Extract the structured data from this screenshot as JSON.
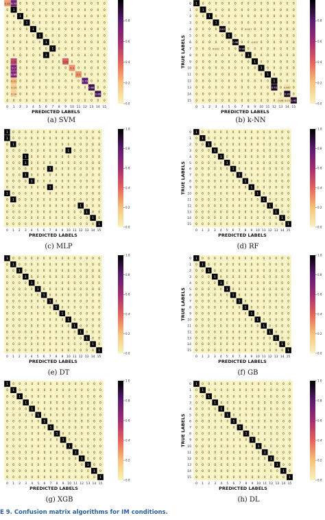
{
  "figure_caption": {
    "label": "E 9.",
    "text": "Confusion matrix algorithms for IM conditions."
  },
  "colors": {
    "zero": "#f9f2bd",
    "low": "#f6c27b",
    "midlow": "#e4625a",
    "mid": "#a02d73",
    "midhigh": "#5a1b70",
    "high": "#000000",
    "grid": "#ffffff",
    "caption_blue": "#2a5f9e"
  },
  "chart_data": [
    {
      "type": "heatmap",
      "subcaption": "(a) SVM",
      "xlabel": "PREDICTED LABELS",
      "ylabel": "",
      "size": 16,
      "tick_labels": [
        "0",
        "1",
        "2",
        "3",
        "4",
        "5",
        "6",
        "7",
        "8",
        "9",
        "10",
        "11",
        "12",
        "13",
        "14",
        "15"
      ],
      "colorbar_ticks": [
        "0.0",
        "0.2",
        "0.4",
        "0.6",
        "0.8"
      ],
      "colorbar_max": 1.0,
      "cells": [
        {
          "r": 0,
          "c": 0,
          "v": 0.28,
          "label": "0.28"
        },
        {
          "r": 0,
          "c": 1,
          "v": 0.72,
          "label": "0.72"
        },
        {
          "r": 1,
          "c": 1,
          "v": 1,
          "label": "1"
        },
        {
          "r": 2,
          "c": 2,
          "v": 1,
          "label": "1"
        },
        {
          "r": 3,
          "c": 3,
          "v": 1,
          "label": "1"
        },
        {
          "r": 4,
          "c": 4,
          "v": 1,
          "label": "1"
        },
        {
          "r": 5,
          "c": 5,
          "v": 1,
          "label": "1"
        },
        {
          "r": 6,
          "c": 6,
          "v": 1,
          "label": "1"
        },
        {
          "r": 7,
          "c": 7,
          "v": 1,
          "label": "1"
        },
        {
          "r": 8,
          "c": 6,
          "v": 1,
          "label": "1"
        },
        {
          "r": 9,
          "c": 1,
          "v": 0.5,
          "label": "0.50"
        },
        {
          "r": 9,
          "c": 9,
          "v": 0.42,
          "label": "0.42"
        },
        {
          "r": 10,
          "c": 1,
          "v": 0.7,
          "label": "0.7"
        },
        {
          "r": 10,
          "c": 10,
          "v": 0.3,
          "label": "0.3"
        },
        {
          "r": 11,
          "c": 1,
          "v": 0.69,
          "label": "0.69"
        },
        {
          "r": 11,
          "c": 11,
          "v": 0.3,
          "label": "0.3"
        },
        {
          "r": 12,
          "c": 1,
          "v": 0.21,
          "label": "0.21"
        },
        {
          "r": 12,
          "c": 12,
          "v": 0.79,
          "label": "0.79"
        },
        {
          "r": 13,
          "c": 1,
          "v": 0.14,
          "label": "0.14"
        },
        {
          "r": 13,
          "c": 13,
          "v": 0.86,
          "label": "0.86"
        },
        {
          "r": 14,
          "c": 1,
          "v": 0.14,
          "label": "0.14"
        },
        {
          "r": 14,
          "c": 14,
          "v": 0.86,
          "label": "0.86"
        }
      ]
    },
    {
      "type": "heatmap",
      "subcaption": "(b) k-NN",
      "xlabel": "PREDICTED LABELS",
      "ylabel": "TRUE LABELS",
      "size": 16,
      "tick_labels": [
        "0",
        "1",
        "2",
        "3",
        "4",
        "5",
        "6",
        "7",
        "8",
        "9",
        "10",
        "11",
        "12",
        "13",
        "14",
        "15"
      ],
      "colorbar_ticks": [
        "0.0",
        "0.2",
        "0.4",
        "0.6",
        "0.8"
      ],
      "colorbar_max": 1.0,
      "cells": [
        {
          "r": 0,
          "c": 0,
          "v": 1,
          "label": "1"
        },
        {
          "r": 1,
          "c": 1,
          "v": 1,
          "label": "1"
        },
        {
          "r": 2,
          "c": 2,
          "v": 1,
          "label": "1"
        },
        {
          "r": 3,
          "c": 3,
          "v": 1,
          "label": "1"
        },
        {
          "r": 4,
          "c": 4,
          "v": 0.97,
          "label": "0.97"
        },
        {
          "r": 4,
          "c": 8,
          "v": 0.017,
          "label": "0.017"
        },
        {
          "r": 5,
          "c": 5,
          "v": 1,
          "label": "1"
        },
        {
          "r": 6,
          "c": 6,
          "v": 0.98,
          "label": "0.98"
        },
        {
          "r": 6,
          "c": 9,
          "v": 0.017,
          "label": "0.017"
        },
        {
          "r": 7,
          "c": 3,
          "v": 0.023,
          "label": "0.023"
        },
        {
          "r": 7,
          "c": 7,
          "v": 0.98,
          "label": "0.98"
        },
        {
          "r": 8,
          "c": 8,
          "v": 1,
          "label": "1"
        },
        {
          "r": 9,
          "c": 9,
          "v": 1,
          "label": "1"
        },
        {
          "r": 10,
          "c": 10,
          "v": 1,
          "label": "1"
        },
        {
          "r": 11,
          "c": 11,
          "v": 1,
          "label": "1"
        },
        {
          "r": 12,
          "c": 12,
          "v": 1,
          "label": "1"
        },
        {
          "r": 13,
          "c": 12,
          "v": 0.93,
          "label": "0.93"
        },
        {
          "r": 13,
          "c": 14,
          "v": 0.063,
          "label": "0.063"
        },
        {
          "r": 14,
          "c": 14,
          "v": 0.95,
          "label": "0.95"
        },
        {
          "r": 15,
          "c": 13,
          "v": 0.06,
          "label": "0.06"
        },
        {
          "r": 15,
          "c": 14,
          "v": 0.03,
          "label": "0.03"
        },
        {
          "r": 15,
          "c": 15,
          "v": 0.92,
          "label": "0.92"
        }
      ]
    },
    {
      "type": "heatmap",
      "subcaption": "(c) MLP",
      "xlabel": "PREDICTED LABELS",
      "ylabel": "",
      "size": 16,
      "tick_labels": [
        "0",
        "1",
        "2",
        "3",
        "4",
        "5",
        "6",
        "7",
        "8",
        "9",
        "10",
        "11",
        "12",
        "13",
        "14",
        "15"
      ],
      "colorbar_ticks": [
        "0.0",
        "0.2",
        "0.4",
        "0.6",
        "0.8",
        "1.0"
      ],
      "colorbar_max": 1.0,
      "cells": [
        {
          "r": 0,
          "c": 0,
          "v": 1,
          "label": "1"
        },
        {
          "r": 1,
          "c": 0,
          "v": 1,
          "label": "1"
        },
        {
          "r": 2,
          "c": 1,
          "v": 1,
          "label": "1"
        },
        {
          "r": 3,
          "c": 10,
          "v": 1,
          "label": "1"
        },
        {
          "r": 4,
          "c": 3,
          "v": 1,
          "label": "1"
        },
        {
          "r": 5,
          "c": 3,
          "v": 1,
          "label": "1"
        },
        {
          "r": 6,
          "c": 7,
          "v": 1,
          "label": "1"
        },
        {
          "r": 7,
          "c": 3,
          "v": 1,
          "label": "1"
        },
        {
          "r": 8,
          "c": 4,
          "v": 1,
          "label": "1"
        },
        {
          "r": 9,
          "c": 7,
          "v": 1,
          "label": "1"
        },
        {
          "r": 10,
          "c": 0,
          "v": 1,
          "label": "1"
        },
        {
          "r": 11,
          "c": 1,
          "v": 1,
          "label": "1"
        },
        {
          "r": 12,
          "c": 12,
          "v": 1,
          "label": "1"
        },
        {
          "r": 13,
          "c": 13,
          "v": 1,
          "label": "1"
        },
        {
          "r": 14,
          "c": 14,
          "v": 1,
          "label": "1"
        },
        {
          "r": 15,
          "c": 15,
          "v": 1,
          "label": "1"
        }
      ]
    },
    {
      "type": "heatmap",
      "subcaption": "(d) RF",
      "xlabel": "PREDICTED LABELS",
      "ylabel": "TRUE LABELS",
      "size": 16,
      "tick_labels": [
        "0",
        "1",
        "2",
        "3",
        "4",
        "5",
        "6",
        "7",
        "8",
        "9",
        "10",
        "11",
        "12",
        "13",
        "14",
        "15"
      ],
      "colorbar_ticks": [
        "0.0",
        "0.2",
        "0.4",
        "0.6",
        "0.8",
        "1.0"
      ],
      "colorbar_max": 1.0,
      "cells": [
        {
          "r": 0,
          "c": 0,
          "v": 1,
          "label": "1"
        },
        {
          "r": 1,
          "c": 1,
          "v": 1,
          "label": "1"
        },
        {
          "r": 2,
          "c": 2,
          "v": 1,
          "label": "1"
        },
        {
          "r": 3,
          "c": 3,
          "v": 1,
          "label": "1"
        },
        {
          "r": 4,
          "c": 4,
          "v": 1,
          "label": "1"
        },
        {
          "r": 5,
          "c": 5,
          "v": 1,
          "label": "1"
        },
        {
          "r": 6,
          "c": 6,
          "v": 1,
          "label": "1"
        },
        {
          "r": 7,
          "c": 7,
          "v": 1,
          "label": "1"
        },
        {
          "r": 8,
          "c": 8,
          "v": 1,
          "label": "1"
        },
        {
          "r": 9,
          "c": 9,
          "v": 1,
          "label": "1"
        },
        {
          "r": 10,
          "c": 10,
          "v": 1,
          "label": "1"
        },
        {
          "r": 11,
          "c": 11,
          "v": 1,
          "label": "1"
        },
        {
          "r": 12,
          "c": 12,
          "v": 1,
          "label": "1"
        },
        {
          "r": 13,
          "c": 13,
          "v": 1,
          "label": "1"
        },
        {
          "r": 14,
          "c": 14,
          "v": 1,
          "label": "1"
        },
        {
          "r": 15,
          "c": 15,
          "v": 1,
          "label": "1"
        }
      ]
    },
    {
      "type": "heatmap",
      "subcaption": "(e) DT",
      "xlabel": "PREDICTED LABELS",
      "ylabel": "",
      "size": 16,
      "tick_labels": [
        "0",
        "1",
        "2",
        "3",
        "4",
        "5",
        "6",
        "7",
        "8",
        "9",
        "10",
        "11",
        "12",
        "13",
        "14",
        "15"
      ],
      "colorbar_ticks": [
        "0.0",
        "0.2",
        "0.4",
        "0.6",
        "0.8",
        "1.0"
      ],
      "colorbar_max": 1.0,
      "cells": [
        {
          "r": 0,
          "c": 0,
          "v": 1,
          "label": "1"
        },
        {
          "r": 1,
          "c": 1,
          "v": 1,
          "label": "1"
        },
        {
          "r": 2,
          "c": 2,
          "v": 1,
          "label": "1"
        },
        {
          "r": 3,
          "c": 3,
          "v": 1,
          "label": "1"
        },
        {
          "r": 4,
          "c": 4,
          "v": 1,
          "label": "1"
        },
        {
          "r": 5,
          "c": 5,
          "v": 1,
          "label": "1"
        },
        {
          "r": 6,
          "c": 6,
          "v": 1,
          "label": "1"
        },
        {
          "r": 7,
          "c": 7,
          "v": 1,
          "label": "1"
        },
        {
          "r": 8,
          "c": 8,
          "v": 1,
          "label": "1"
        },
        {
          "r": 9,
          "c": 9,
          "v": 1,
          "label": "1"
        },
        {
          "r": 10,
          "c": 10,
          "v": 1,
          "label": "1"
        },
        {
          "r": 11,
          "c": 11,
          "v": 1,
          "label": "1"
        },
        {
          "r": 12,
          "c": 12,
          "v": 1,
          "label": "1"
        },
        {
          "r": 13,
          "c": 13,
          "v": 1,
          "label": "1"
        },
        {
          "r": 14,
          "c": 14,
          "v": 1,
          "label": "1"
        },
        {
          "r": 15,
          "c": 15,
          "v": 1,
          "label": "1"
        }
      ]
    },
    {
      "type": "heatmap",
      "subcaption": "(f) GB",
      "xlabel": "PREDICTED LABELS",
      "ylabel": "TRUE LABELS",
      "size": 16,
      "tick_labels": [
        "0",
        "1",
        "2",
        "3",
        "4",
        "5",
        "6",
        "7",
        "8",
        "9",
        "10",
        "11",
        "12",
        "13",
        "14",
        "15"
      ],
      "colorbar_ticks": [
        "0.0",
        "0.2",
        "0.4",
        "0.6",
        "0.8",
        "1.0"
      ],
      "colorbar_max": 1.0,
      "cells": [
        {
          "r": 0,
          "c": 0,
          "v": 1,
          "label": "1"
        },
        {
          "r": 1,
          "c": 1,
          "v": 1,
          "label": "1"
        },
        {
          "r": 2,
          "c": 2,
          "v": 1,
          "label": "1"
        },
        {
          "r": 3,
          "c": 3,
          "v": 1,
          "label": "1"
        },
        {
          "r": 4,
          "c": 4,
          "v": 1,
          "label": "1"
        },
        {
          "r": 5,
          "c": 5,
          "v": 1,
          "label": "1"
        },
        {
          "r": 6,
          "c": 6,
          "v": 1,
          "label": "1"
        },
        {
          "r": 7,
          "c": 7,
          "v": 1,
          "label": "1"
        },
        {
          "r": 8,
          "c": 8,
          "v": 1,
          "label": "1"
        },
        {
          "r": 9,
          "c": 9,
          "v": 1,
          "label": "1"
        },
        {
          "r": 10,
          "c": 10,
          "v": 1,
          "label": "1"
        },
        {
          "r": 11,
          "c": 11,
          "v": 1,
          "label": "1"
        },
        {
          "r": 12,
          "c": 12,
          "v": 1,
          "label": "1"
        },
        {
          "r": 13,
          "c": 13,
          "v": 1,
          "label": "1"
        },
        {
          "r": 14,
          "c": 14,
          "v": 1,
          "label": "1"
        },
        {
          "r": 15,
          "c": 15,
          "v": 1,
          "label": "1"
        }
      ]
    },
    {
      "type": "heatmap",
      "subcaption": "(g) XGB",
      "xlabel": "PREDICTED LABELS",
      "ylabel": "",
      "size": 16,
      "tick_labels": [
        "0",
        "1",
        "2",
        "3",
        "4",
        "5",
        "6",
        "7",
        "8",
        "9",
        "10",
        "11",
        "12",
        "13",
        "14",
        "15"
      ],
      "colorbar_ticks": [
        "0.0",
        "0.2",
        "0.4",
        "0.6",
        "0.8",
        "1.0"
      ],
      "colorbar_max": 1.0,
      "cells": [
        {
          "r": 0,
          "c": 0,
          "v": 1,
          "label": "1"
        },
        {
          "r": 1,
          "c": 1,
          "v": 1,
          "label": "1"
        },
        {
          "r": 2,
          "c": 2,
          "v": 1,
          "label": "1"
        },
        {
          "r": 3,
          "c": 3,
          "v": 1,
          "label": "1"
        },
        {
          "r": 4,
          "c": 4,
          "v": 1,
          "label": "1"
        },
        {
          "r": 5,
          "c": 5,
          "v": 1,
          "label": "1"
        },
        {
          "r": 6,
          "c": 6,
          "v": 1,
          "label": "1"
        },
        {
          "r": 7,
          "c": 7,
          "v": 1,
          "label": "1"
        },
        {
          "r": 8,
          "c": 8,
          "v": 1,
          "label": "1"
        },
        {
          "r": 9,
          "c": 9,
          "v": 1,
          "label": "1"
        },
        {
          "r": 10,
          "c": 10,
          "v": 1,
          "label": "1"
        },
        {
          "r": 11,
          "c": 11,
          "v": 1,
          "label": "1"
        },
        {
          "r": 12,
          "c": 12,
          "v": 1,
          "label": "1"
        },
        {
          "r": 13,
          "c": 13,
          "v": 1,
          "label": "1"
        },
        {
          "r": 14,
          "c": 14,
          "v": 1,
          "label": "1"
        },
        {
          "r": 15,
          "c": 15,
          "v": 1,
          "label": "1"
        }
      ]
    },
    {
      "type": "heatmap",
      "subcaption": "(h) DL",
      "xlabel": "PREDICTED LABELS",
      "ylabel": "TRUE LABELS",
      "size": 16,
      "tick_labels": [
        "0",
        "1",
        "2",
        "3",
        "4",
        "5",
        "6",
        "7",
        "8",
        "9",
        "10",
        "11",
        "12",
        "13",
        "14",
        "15"
      ],
      "colorbar_ticks": [
        "0.0",
        "0.2",
        "0.4",
        "0.6",
        "0.8",
        "1.0"
      ],
      "colorbar_max": 1.0,
      "cells": [
        {
          "r": 0,
          "c": 0,
          "v": 1,
          "label": "1"
        },
        {
          "r": 1,
          "c": 1,
          "v": 1,
          "label": "1"
        },
        {
          "r": 2,
          "c": 2,
          "v": 1,
          "label": "1"
        },
        {
          "r": 3,
          "c": 3,
          "v": 1,
          "label": "1"
        },
        {
          "r": 4,
          "c": 4,
          "v": 1,
          "label": "1"
        },
        {
          "r": 5,
          "c": 5,
          "v": 1,
          "label": "1"
        },
        {
          "r": 6,
          "c": 6,
          "v": 1,
          "label": "1"
        },
        {
          "r": 7,
          "c": 7,
          "v": 1,
          "label": "1"
        },
        {
          "r": 8,
          "c": 8,
          "v": 1,
          "label": "1"
        },
        {
          "r": 9,
          "c": 9,
          "v": 1,
          "label": "1"
        },
        {
          "r": 10,
          "c": 10,
          "v": 1,
          "label": "1"
        },
        {
          "r": 11,
          "c": 11,
          "v": 1,
          "label": "1"
        },
        {
          "r": 12,
          "c": 12,
          "v": 1,
          "label": "1"
        },
        {
          "r": 13,
          "c": 13,
          "v": 1,
          "label": "1"
        },
        {
          "r": 14,
          "c": 14,
          "v": 1,
          "label": "1"
        },
        {
          "r": 15,
          "c": 15,
          "v": 1,
          "label": "1"
        }
      ]
    }
  ]
}
